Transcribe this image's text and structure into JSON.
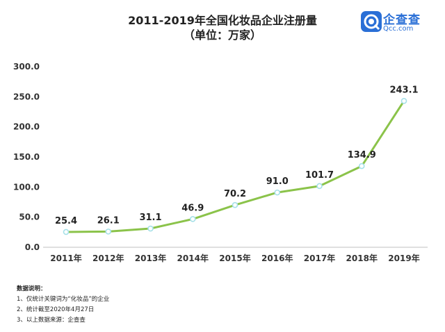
{
  "chart_data": {
    "type": "line",
    "title": "2011-2019年全国化妆品企业注册量",
    "subtitle": "（单位：万家）",
    "categories": [
      "2011年",
      "2012年",
      "2013年",
      "2014年",
      "2015年",
      "2016年",
      "2017年",
      "2018年",
      "2019年"
    ],
    "values": [
      25.4,
      26.1,
      31.1,
      46.9,
      70.2,
      91.0,
      101.7,
      134.9,
      243.1
    ],
    "data_labels": [
      "25.4",
      "26.1",
      "31.1",
      "46.9",
      "70.2",
      "91.0",
      "101.7",
      "134.9",
      "243.1"
    ],
    "y_ticks": [
      "0.0",
      "50.0",
      "100.0",
      "150.0",
      "200.0",
      "250.0",
      "300.0"
    ],
    "ylim": [
      0,
      300
    ],
    "xlabel": "",
    "ylabel": "",
    "grid": false,
    "line_color": "#8bc34a",
    "marker_color": "#a5e0e8"
  },
  "brand": {
    "name": "企查查",
    "domain": "Qcc.com"
  },
  "notes": {
    "heading": "数据说明：",
    "items": [
      "1、仅统计关键词为“化妆品”的企业",
      "2、统计截至2020年4月27日",
      "3、以上数据来源：企查查"
    ]
  }
}
